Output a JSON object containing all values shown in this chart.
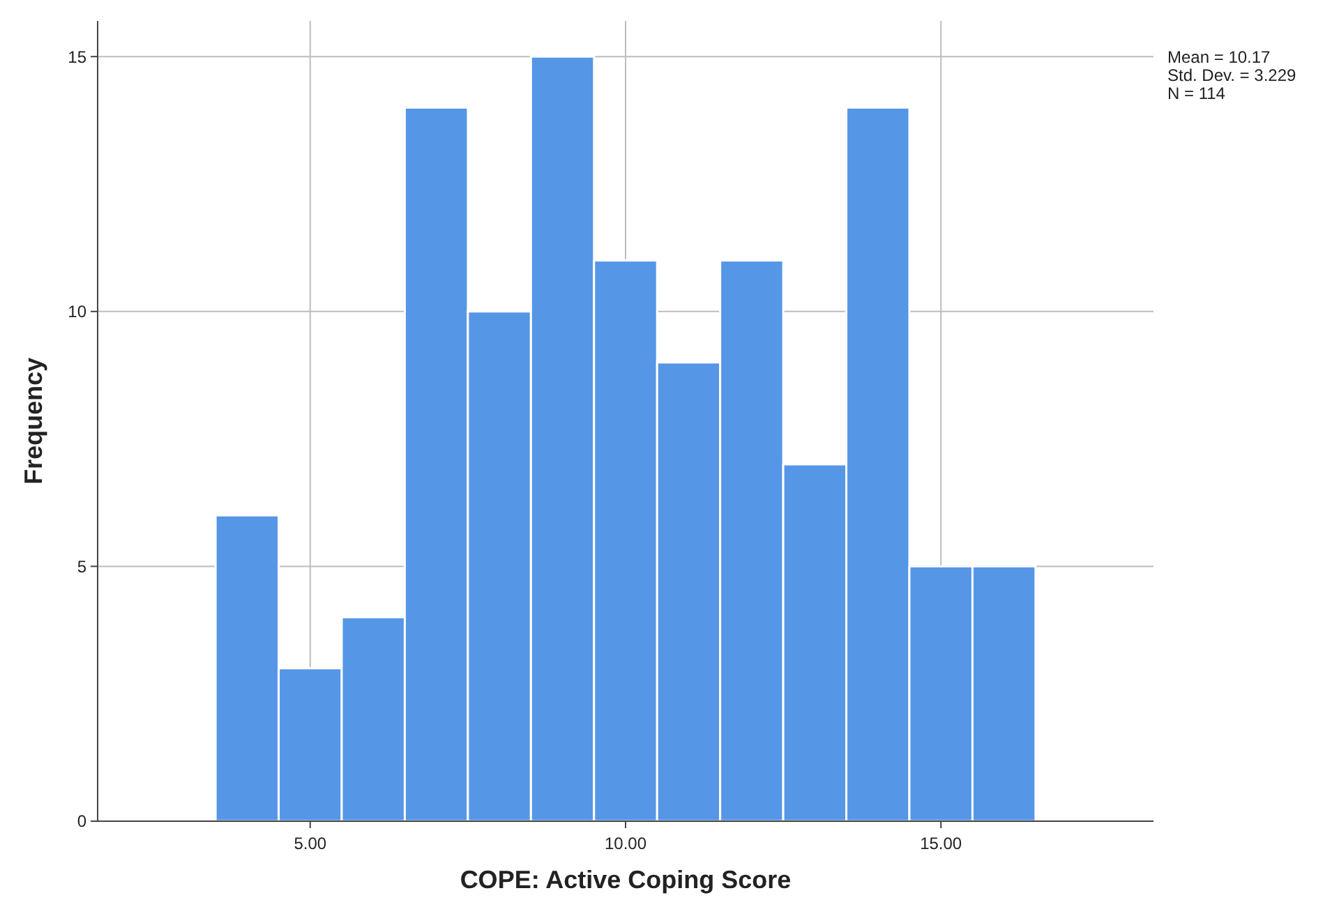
{
  "chart_data": {
    "type": "histogram",
    "xlabel": "COPE: Active Coping Score",
    "ylabel": "Frequency",
    "bins": [
      3.5,
      4.5,
      5.5,
      6.5,
      7.5,
      8.5,
      9.5,
      10.5,
      11.5,
      12.5,
      13.5,
      14.5,
      15.5,
      16.5
    ],
    "values": [
      6,
      3,
      4,
      14,
      10,
      15,
      11,
      9,
      11,
      7,
      14,
      5,
      5
    ],
    "color": "#5596e6",
    "xlim": [
      1.63,
      18.37
    ],
    "xticks": [
      {
        "value": 5,
        "label": "5.00"
      },
      {
        "value": 10,
        "label": "10.00"
      },
      {
        "value": 15,
        "label": "15.00"
      }
    ],
    "ylim": [
      0,
      15.7
    ],
    "yticks": [
      0,
      5,
      10,
      15
    ],
    "grid": true,
    "annotations": [
      "Mean = 10.17",
      "Std. Dev. = 3.229",
      "N = 114"
    ]
  }
}
